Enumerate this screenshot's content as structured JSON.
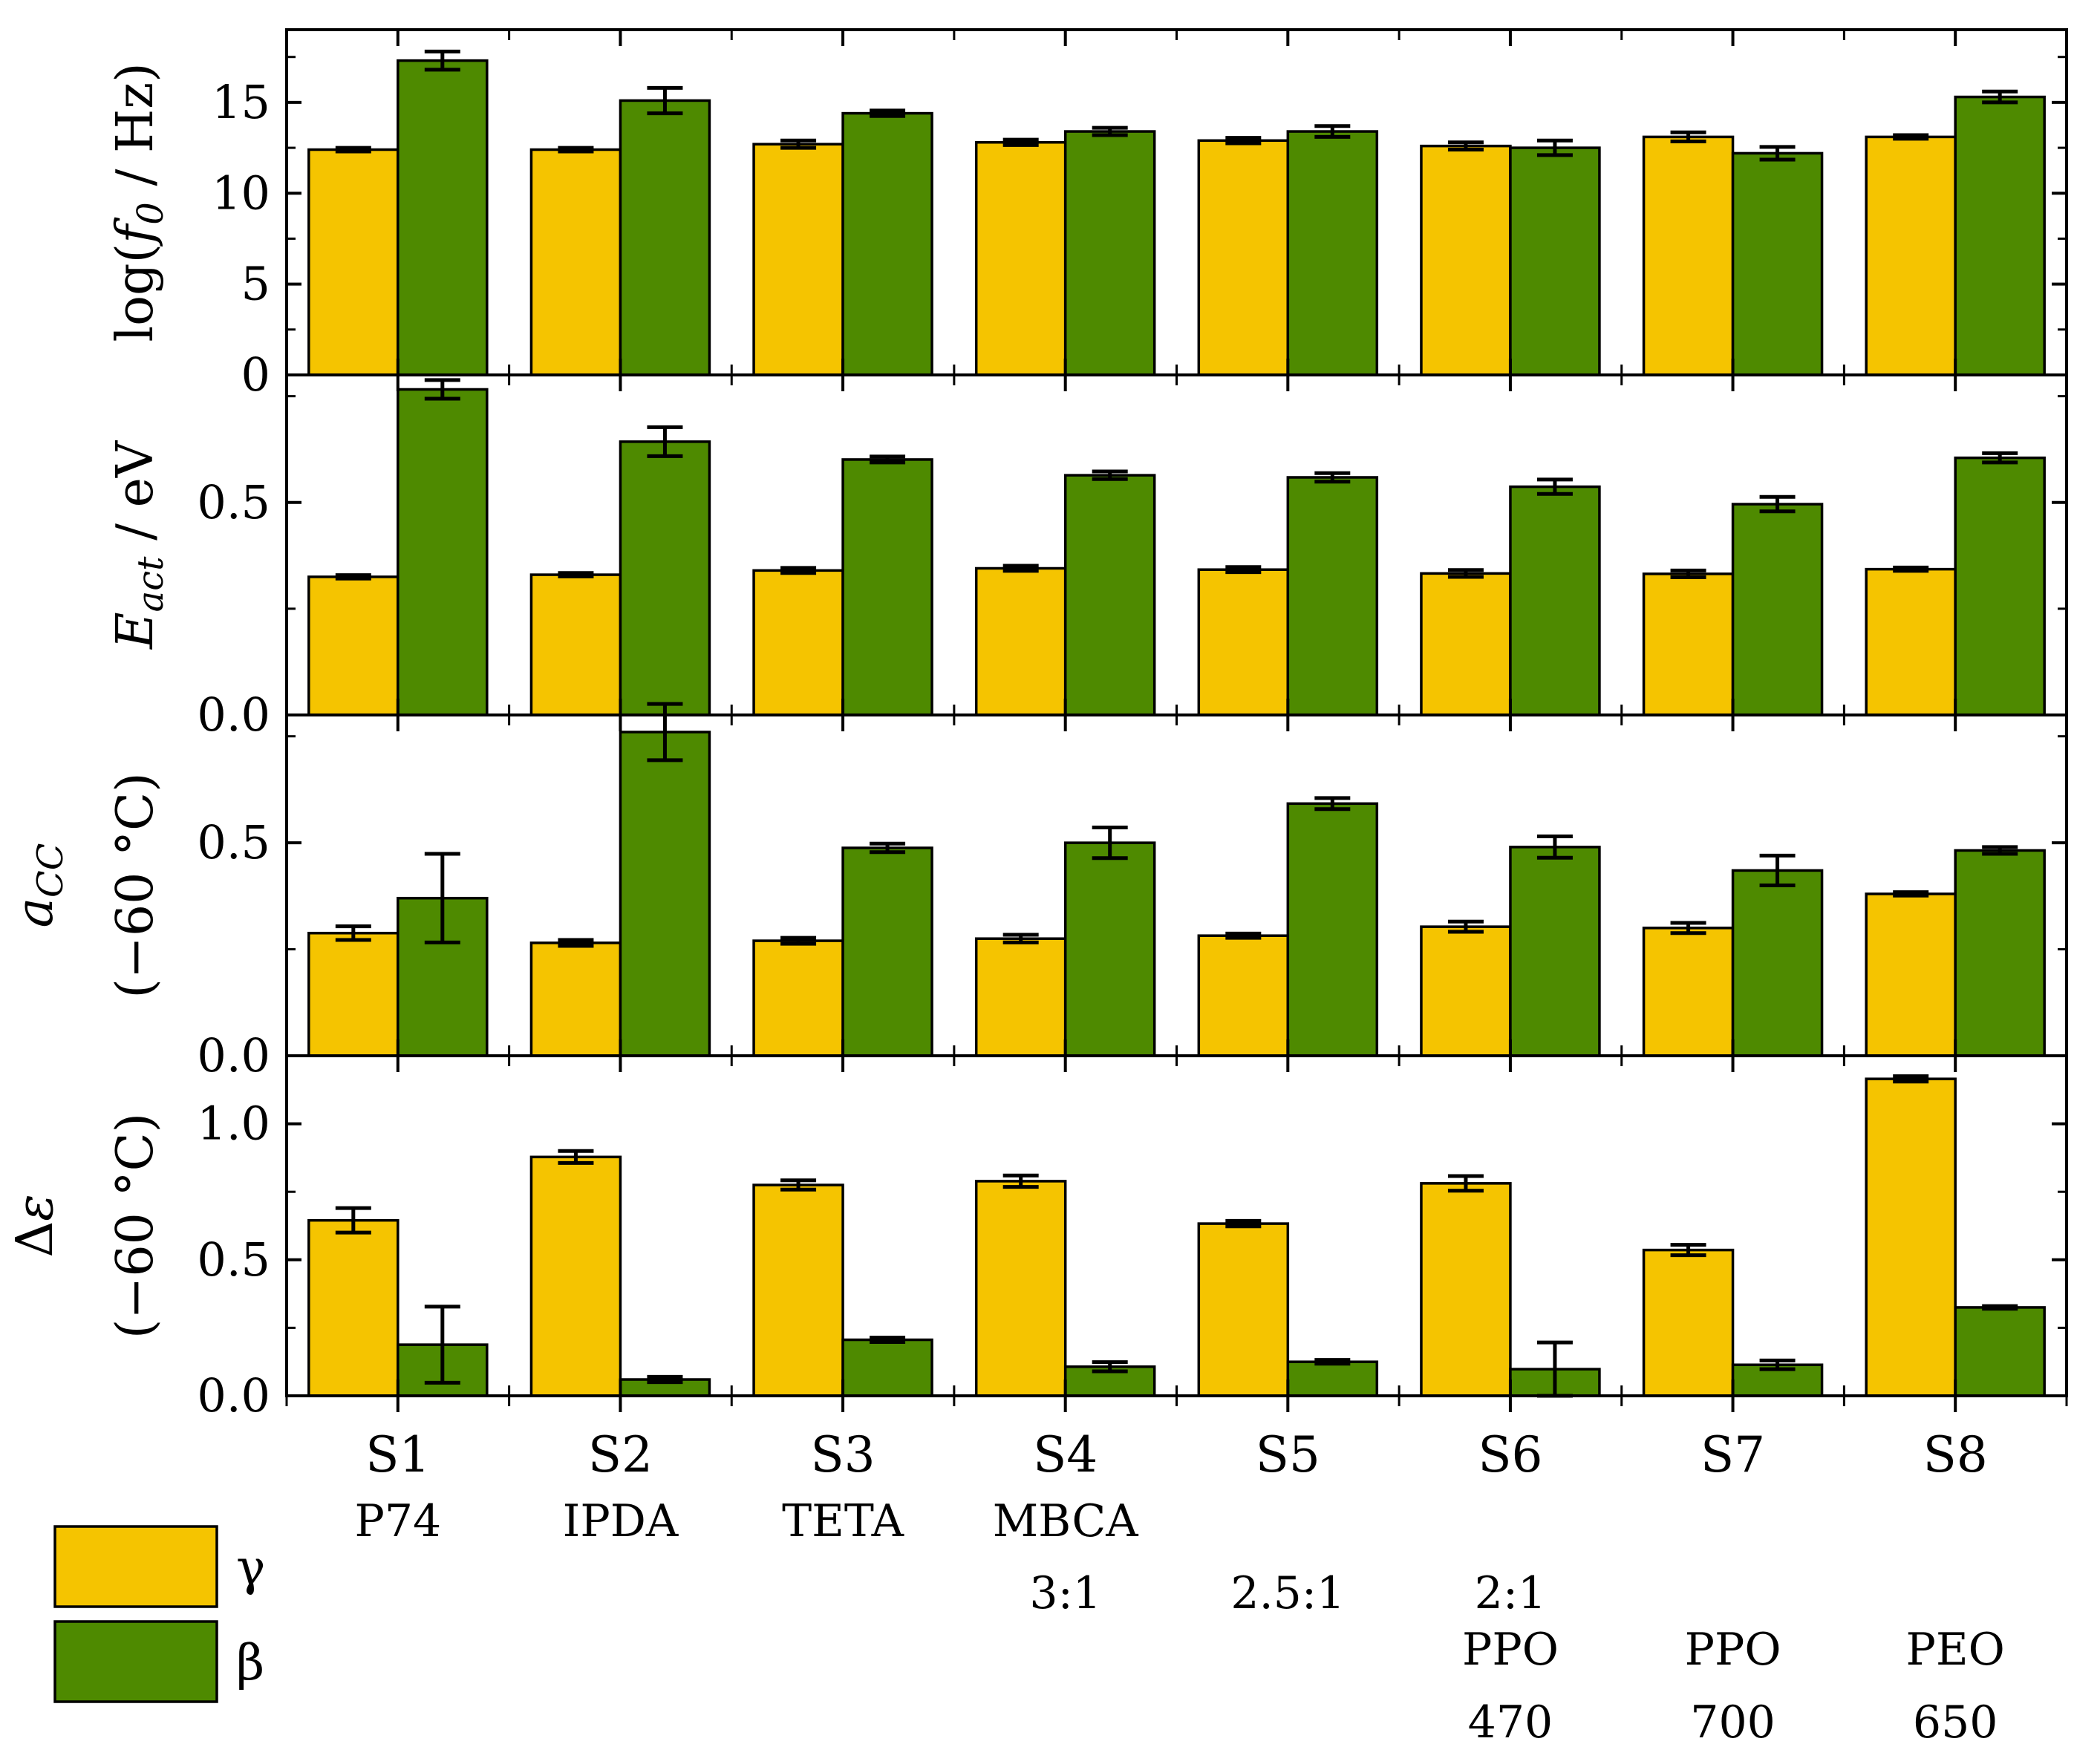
{
  "chart_data": {
    "type": "bar",
    "categories": [
      "S1",
      "S2",
      "S3",
      "S4",
      "S5",
      "S6",
      "S7",
      "S8"
    ],
    "sample_labels": [
      {
        "cat": "S1",
        "lines": [
          "P74"
        ]
      },
      {
        "cat": "S2",
        "lines": [
          "IPDA"
        ]
      },
      {
        "cat": "S3",
        "lines": [
          "TETA"
        ]
      },
      {
        "cat": "S4",
        "lines": [
          "MBCA",
          "3:1"
        ]
      },
      {
        "cat": "S5",
        "lines": [
          "2.5:1"
        ]
      },
      {
        "cat": "S6",
        "lines": [
          "2:1",
          "PPO",
          "470"
        ]
      },
      {
        "cat": "S7",
        "lines": [
          "PPO",
          "700"
        ]
      },
      {
        "cat": "S8",
        "lines": [
          "PEO",
          "650"
        ]
      }
    ],
    "legend": [
      {
        "name": "γ",
        "color": "#f5c400"
      },
      {
        "name": "β",
        "color": "#4e8a00"
      }
    ],
    "panels": [
      {
        "id": "log-f0",
        "ylabel_parts": [
          {
            "text": "log(",
            "italic": false
          },
          {
            "text": "f",
            "italic": true
          },
          {
            "text": "0",
            "italic": true,
            "sub": true
          },
          {
            "text": " / Hz)",
            "italic": false
          }
        ],
        "ylabel_line2": "",
        "ylim": [
          0,
          19
        ],
        "yticks": [
          0,
          5,
          10,
          15
        ],
        "ytick_labels": [
          "0",
          "5",
          "10",
          "15"
        ],
        "series": [
          {
            "name": "γ",
            "values": [
              12.4,
              12.4,
              12.7,
              12.8,
              12.9,
              12.6,
              13.1,
              13.1
            ],
            "errors": [
              0.1,
              0.1,
              0.2,
              0.15,
              0.15,
              0.2,
              0.25,
              0.1
            ]
          },
          {
            "name": "β",
            "values": [
              17.3,
              15.1,
              14.4,
              13.4,
              13.4,
              12.5,
              12.2,
              15.3
            ],
            "errors": [
              0.5,
              0.7,
              0.15,
              0.2,
              0.3,
              0.4,
              0.35,
              0.3
            ]
          }
        ]
      },
      {
        "id": "e-act",
        "ylabel_parts": [
          {
            "text": "E",
            "italic": true
          },
          {
            "text": "act",
            "italic": true,
            "sub": true
          },
          {
            "text": " / eV",
            "italic": false
          }
        ],
        "ylabel_line2": "",
        "ylim": [
          0.0,
          0.8
        ],
        "yticks": [
          0.0,
          0.5
        ],
        "ytick_labels": [
          "0.0",
          "0.5"
        ],
        "series": [
          {
            "name": "γ",
            "values": [
              0.325,
              0.33,
              0.34,
              0.345,
              0.342,
              0.333,
              0.332,
              0.343
            ],
            "errors": [
              0.004,
              0.004,
              0.006,
              0.006,
              0.006,
              0.008,
              0.008,
              0.004
            ]
          },
          {
            "name": "β",
            "values": [
              0.766,
              0.643,
              0.601,
              0.564,
              0.559,
              0.537,
              0.496,
              0.605
            ],
            "errors": [
              0.022,
              0.034,
              0.007,
              0.009,
              0.01,
              0.017,
              0.017,
              0.011
            ]
          }
        ]
      },
      {
        "id": "a-cc",
        "ylabel_parts": [
          {
            "text": "a",
            "italic": true
          },
          {
            "text": "CC",
            "italic": true,
            "sub": true
          }
        ],
        "ylabel_line2": "(−60 °C)",
        "ylim": [
          0.0,
          0.8
        ],
        "yticks": [
          0.0,
          0.5
        ],
        "ytick_labels": [
          "0.0",
          "0.5"
        ],
        "series": [
          {
            "name": "γ",
            "values": [
              0.288,
              0.265,
              0.27,
              0.275,
              0.282,
              0.303,
              0.3,
              0.38
            ],
            "errors": [
              0.016,
              0.007,
              0.007,
              0.009,
              0.005,
              0.012,
              0.012,
              0.004
            ]
          },
          {
            "name": "β",
            "values": [
              0.37,
              0.76,
              0.488,
              0.5,
              0.592,
              0.49,
              0.435,
              0.482
            ],
            "errors": [
              0.104,
              0.066,
              0.01,
              0.036,
              0.013,
              0.025,
              0.035,
              0.008
            ]
          }
        ]
      },
      {
        "id": "delta-eps",
        "ylabel_parts": [
          {
            "text": "Δ",
            "italic": false
          },
          {
            "text": "ε",
            "italic": true
          }
        ],
        "ylabel_line2": "(−60 °C)",
        "ylim": [
          0.0,
          1.25
        ],
        "yticks": [
          0.0,
          0.5,
          1.0
        ],
        "ytick_labels": [
          "0.0",
          "0.5",
          "1.0"
        ],
        "series": [
          {
            "name": "γ",
            "values": [
              0.645,
              0.878,
              0.775,
              0.789,
              0.633,
              0.781,
              0.536,
              1.165
            ],
            "errors": [
              0.045,
              0.022,
              0.017,
              0.021,
              0.01,
              0.027,
              0.019,
              0.01
            ]
          },
          {
            "name": "β",
            "values": [
              0.188,
              0.06,
              0.206,
              0.107,
              0.125,
              0.098,
              0.114,
              0.325
            ],
            "errors": [
              0.14,
              0.01,
              0.008,
              0.017,
              0.007,
              0.098,
              0.016,
              0.005
            ]
          }
        ]
      }
    ]
  }
}
